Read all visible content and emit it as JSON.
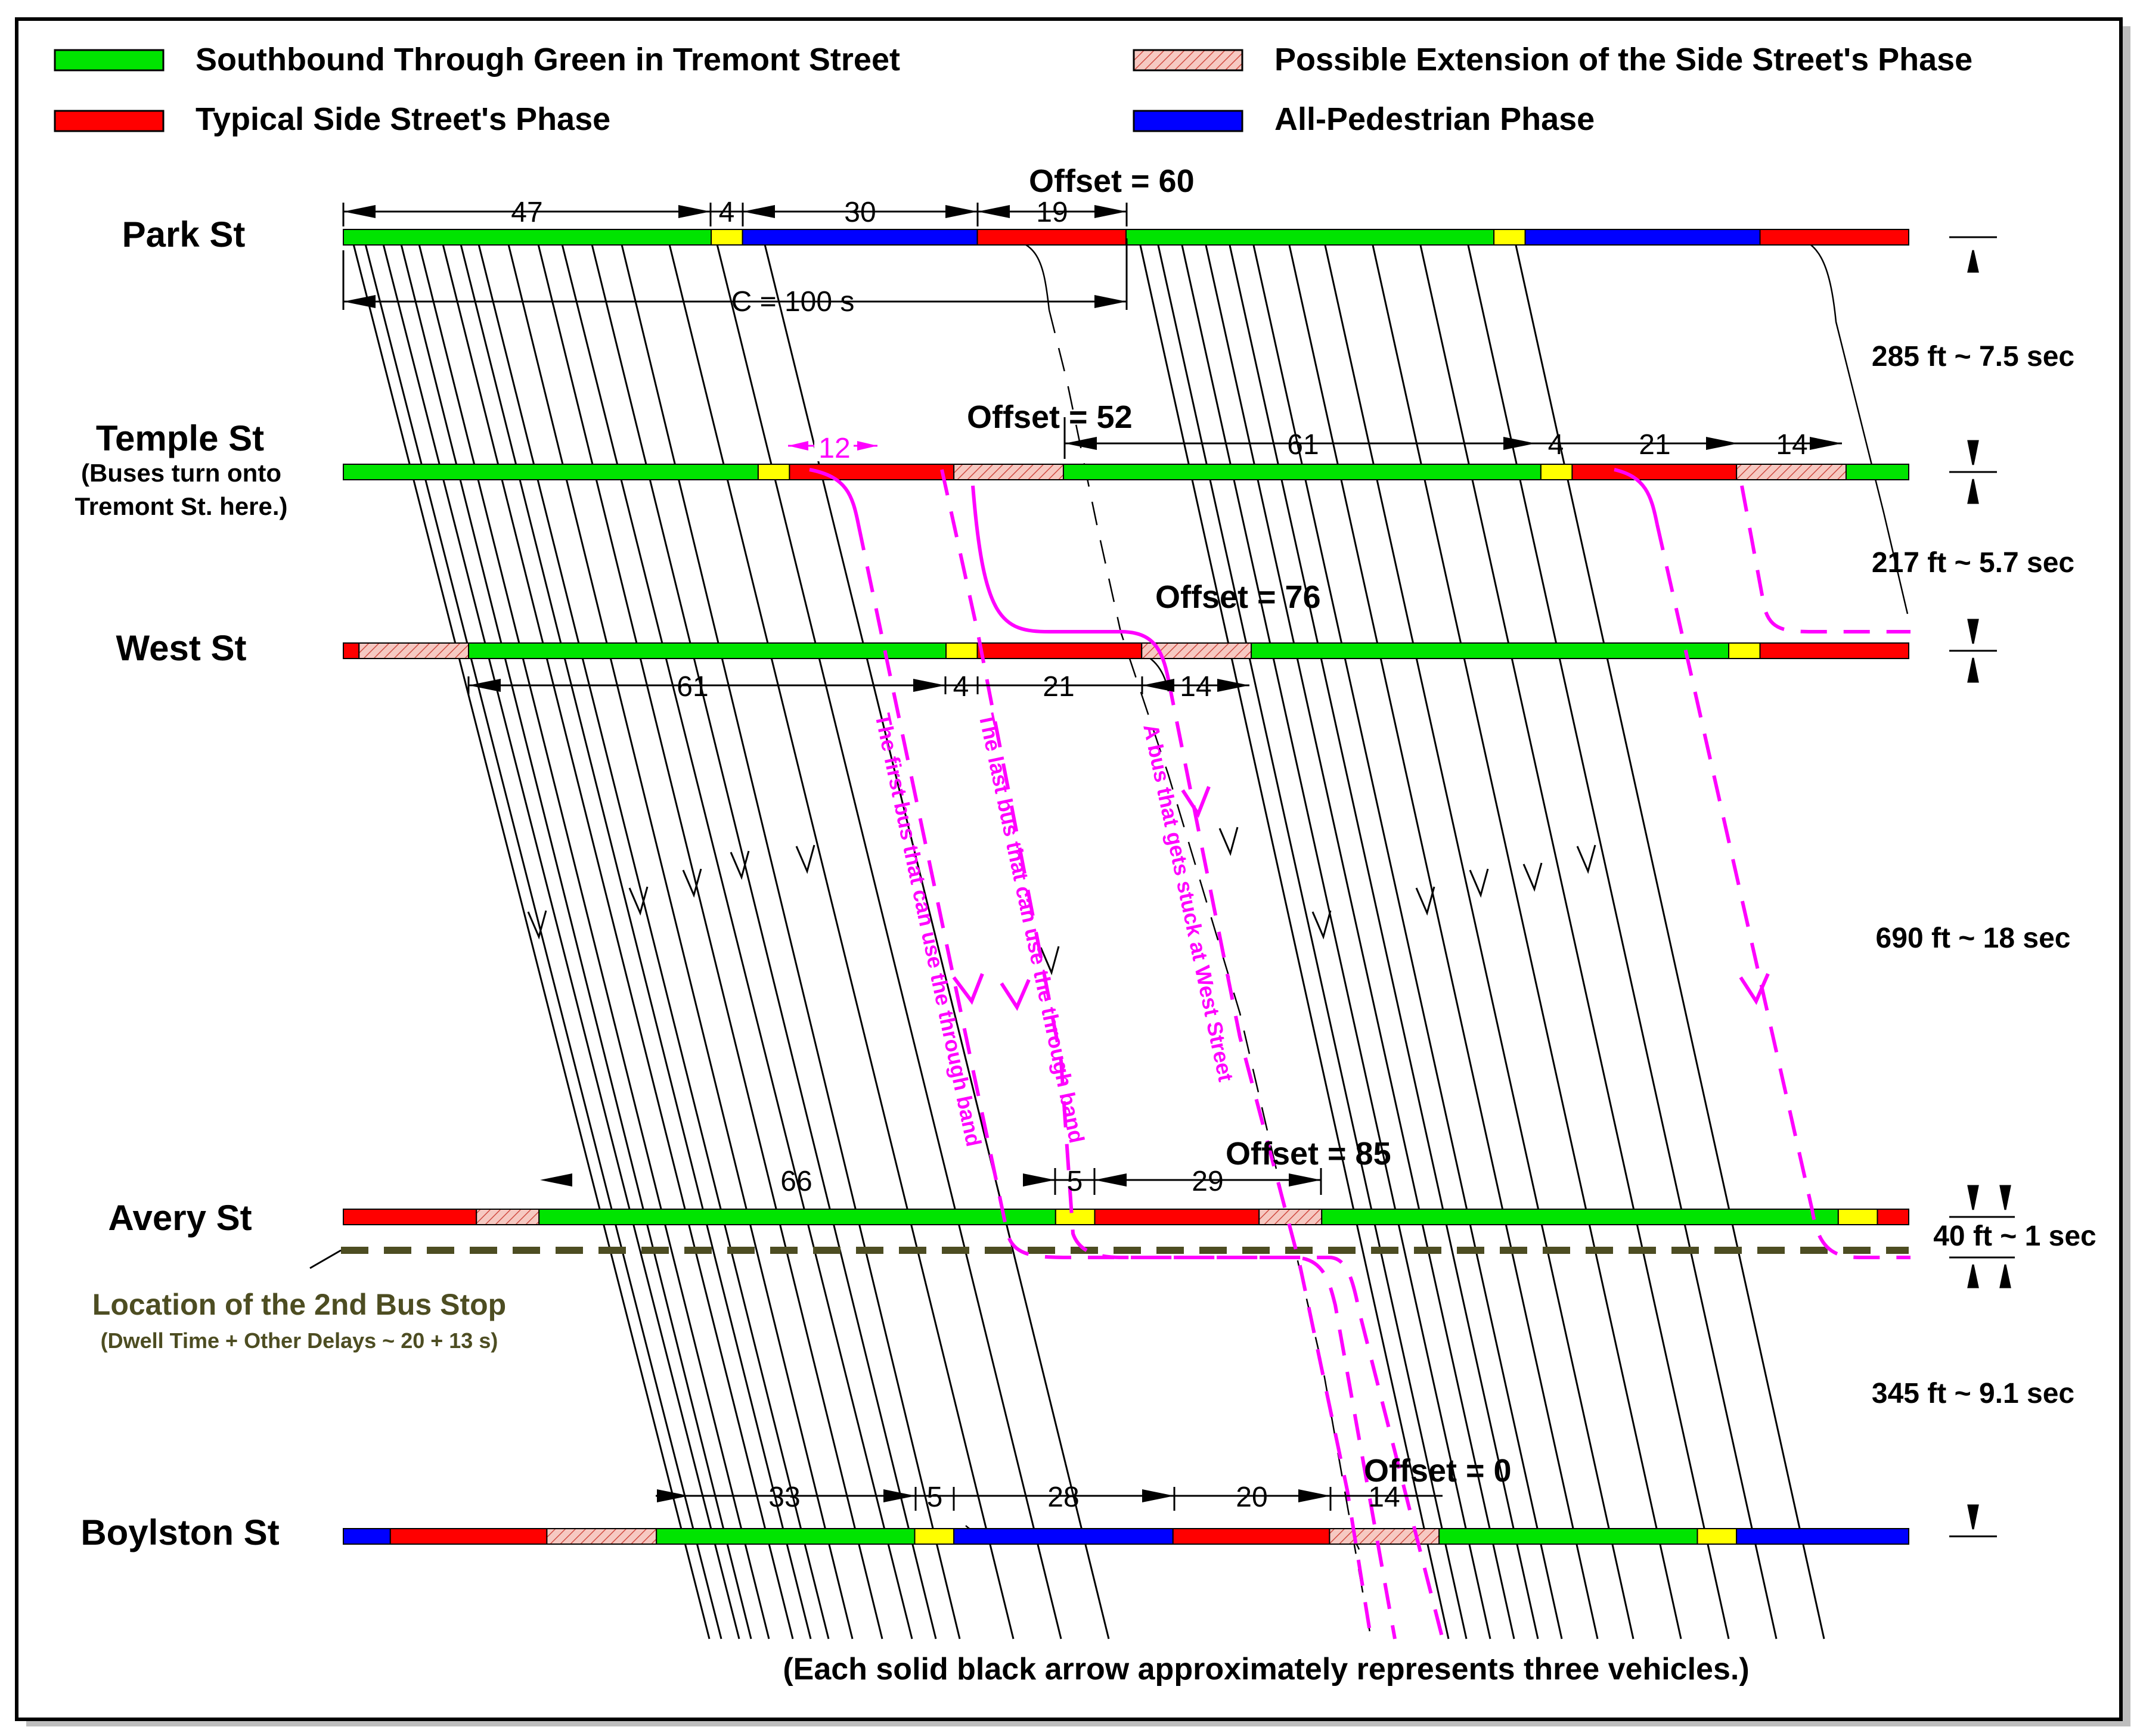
{
  "legend": [
    {
      "key": "through_green",
      "label": "Southbound Through Green in Tremont Street",
      "color": "#00e400"
    },
    {
      "key": "possible_extension",
      "label": "Possible Extension of the Side Street's Phase",
      "color": "#f2b8b0",
      "hatch": true
    },
    {
      "key": "side_street",
      "label": "Typical Side Street's Phase",
      "color": "#ff0000"
    },
    {
      "key": "all_ped",
      "label": "All-Pedestrian Phase",
      "color": "#0000ff"
    }
  ],
  "colors": {
    "green": "#00e400",
    "yellow": "#ffff00",
    "red": "#ff0000",
    "blue": "#0000ff",
    "hatch": "#f2b8b0",
    "bus": "#ff00ff",
    "bus_stop": "#4d4d22",
    "frame": "#000000"
  },
  "intersections": [
    {
      "key": "park",
      "name": "Park St",
      "offset_label": "Offset = 60",
      "phases": [
        [
          "g",
          0,
          47
        ],
        [
          "y",
          47,
          51
        ],
        [
          "b",
          51,
          81
        ],
        [
          "r",
          81,
          100
        ],
        [
          "g",
          100,
          147
        ],
        [
          "y",
          147,
          151
        ],
        [
          "b",
          151,
          181
        ],
        [
          "r",
          181,
          200
        ]
      ]
    },
    {
      "key": "temple",
      "name": "Temple St",
      "note_lines": [
        "(Buses turn onto",
        "Tremont St. here.)"
      ],
      "offset_label": "Offset = 52",
      "phases": [
        [
          "g",
          0,
          53
        ],
        [
          "y",
          53,
          57
        ],
        [
          "r",
          57,
          78
        ],
        [
          "h",
          78,
          92
        ],
        [
          "g",
          92,
          153
        ],
        [
          "y",
          153,
          157
        ],
        [
          "r",
          157,
          178
        ],
        [
          "h",
          178,
          192
        ],
        [
          "g",
          192,
          200
        ]
      ]
    },
    {
      "key": "west",
      "name": "West St",
      "offset_label": "Offset = 76",
      "phases": [
        [
          "r",
          0,
          2
        ],
        [
          "h",
          2,
          16
        ],
        [
          "g",
          16,
          77
        ],
        [
          "y",
          77,
          81
        ],
        [
          "r",
          81,
          102
        ],
        [
          "h",
          102,
          116
        ],
        [
          "g",
          116,
          177
        ],
        [
          "y",
          177,
          181
        ],
        [
          "r",
          181,
          200
        ]
      ]
    },
    {
      "key": "avery",
      "name": "Avery St",
      "offset_label": "Offset = 85",
      "phases": [
        [
          "r",
          0,
          17
        ],
        [
          "h",
          17,
          25
        ],
        [
          "g",
          25,
          91
        ],
        [
          "y",
          91,
          96
        ],
        [
          "r",
          96,
          117
        ],
        [
          "h",
          117,
          125
        ],
        [
          "g",
          125,
          191
        ],
        [
          "y",
          191,
          196
        ],
        [
          "r",
          196,
          200
        ]
      ]
    },
    {
      "key": "boylston",
      "name": "Boylston St",
      "offset_label": "Offset = 0",
      "phases": [
        [
          "b",
          0,
          6
        ],
        [
          "r",
          6,
          26
        ],
        [
          "h",
          26,
          40
        ],
        [
          "g",
          40,
          73
        ],
        [
          "y",
          73,
          78
        ],
        [
          "b",
          78,
          106
        ],
        [
          "r",
          106,
          126
        ],
        [
          "h",
          126,
          140
        ],
        [
          "g",
          140,
          173
        ],
        [
          "y",
          173,
          178
        ],
        [
          "b",
          178,
          200
        ]
      ]
    }
  ],
  "dimension_labels": {
    "park": [
      "47",
      "4",
      "30",
      "19"
    ],
    "cycle": "C = 100 s",
    "temple": [
      "12",
      "61",
      "4",
      "21",
      "14"
    ],
    "west": [
      "61",
      "4",
      "21",
      "14"
    ],
    "avery": [
      "66",
      "5",
      "29"
    ],
    "boylston": [
      "33",
      "5",
      "28",
      "20",
      "14"
    ]
  },
  "distances": [
    {
      "key": "park_temple",
      "label": "285 ft ~ 7.5 sec"
    },
    {
      "key": "temple_west",
      "label": "217 ft ~ 5.7 sec"
    },
    {
      "key": "west_avery",
      "label": "690 ft ~ 18 sec"
    },
    {
      "key": "avery_stop",
      "label": "40 ft ~ 1 sec"
    },
    {
      "key": "stop_boylston",
      "label": "345 ft ~ 9.1 sec"
    }
  ],
  "bus_stop": {
    "title": "Location of the 2nd Bus Stop",
    "subtitle": "(Dwell Time + Other Delays ~ 20 + 13 s)"
  },
  "annotations": {
    "first_bus": "The first bus that can use the through band",
    "last_bus": "The last bus that can use the through band",
    "stuck_bus": "A bus that gets stuck at West Street"
  },
  "footnote": "(Each solid black arrow approximately represents three vehicles.)"
}
